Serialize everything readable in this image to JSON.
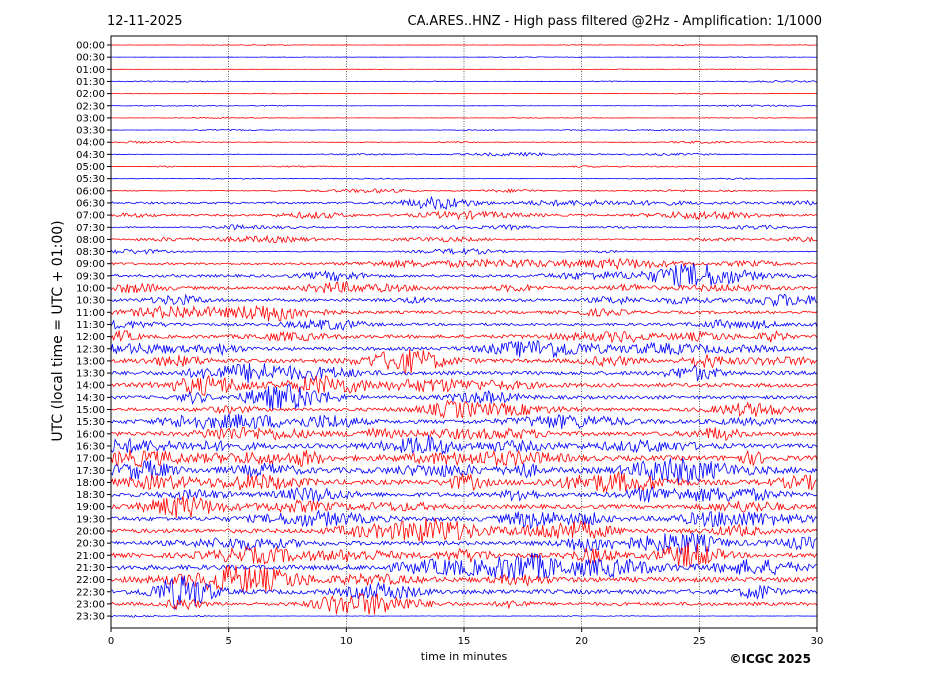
{
  "header": {
    "date": "12-11-2025",
    "title": "CA.ARES..HNZ - High pass filtered @2Hz - Amplification: 1/1000"
  },
  "copyright": "©ICGC 2025",
  "colors": {
    "odd_trace": "#ff0000",
    "even_trace": "#0000ff",
    "axes": "#000000"
  },
  "chart_data": {
    "type": "line",
    "title": "CA.ARES..HNZ - High pass filtered @2Hz - Amplification: 1/1000",
    "xlabel": "time in minutes",
    "ylabel": "UTC (local time = UTC + 01:00)",
    "xlim": [
      0,
      30
    ],
    "x_ticks": [
      0,
      5,
      10,
      15,
      20,
      25,
      30
    ],
    "vertical_gridlines_at": [
      5,
      10,
      15,
      20,
      25
    ],
    "grid": "dotted vertical",
    "trace_colors": [
      "#ff0000",
      "#0000ff"
    ],
    "rows": [
      "00:00",
      "00:30",
      "01:00",
      "01:30",
      "02:00",
      "02:30",
      "03:00",
      "03:30",
      "04:00",
      "04:30",
      "05:00",
      "05:30",
      "06:00",
      "06:30",
      "07:00",
      "07:30",
      "08:00",
      "08:30",
      "09:00",
      "09:30",
      "10:00",
      "10:30",
      "11:00",
      "11:30",
      "12:00",
      "12:30",
      "13:00",
      "13:30",
      "14:00",
      "14:30",
      "15:00",
      "15:30",
      "16:00",
      "16:30",
      "17:00",
      "17:30",
      "18:00",
      "18:30",
      "19:00",
      "19:30",
      "20:00",
      "20:30",
      "21:00",
      "21:30",
      "22:00",
      "22:30",
      "23:00",
      "23:30"
    ],
    "relative_amplitude": [
      0.03,
      0.02,
      0.02,
      0.06,
      0.03,
      0.04,
      0.03,
      0.04,
      0.08,
      0.08,
      0.05,
      0.05,
      0.1,
      0.3,
      0.28,
      0.18,
      0.2,
      0.15,
      0.32,
      0.4,
      0.45,
      0.45,
      0.42,
      0.38,
      0.5,
      0.48,
      0.55,
      0.55,
      0.58,
      0.5,
      0.45,
      0.55,
      0.6,
      0.62,
      0.72,
      0.8,
      0.7,
      0.62,
      0.6,
      0.62,
      0.62,
      0.6,
      0.65,
      0.7,
      0.72,
      0.65,
      0.48,
      0.05
    ]
  }
}
